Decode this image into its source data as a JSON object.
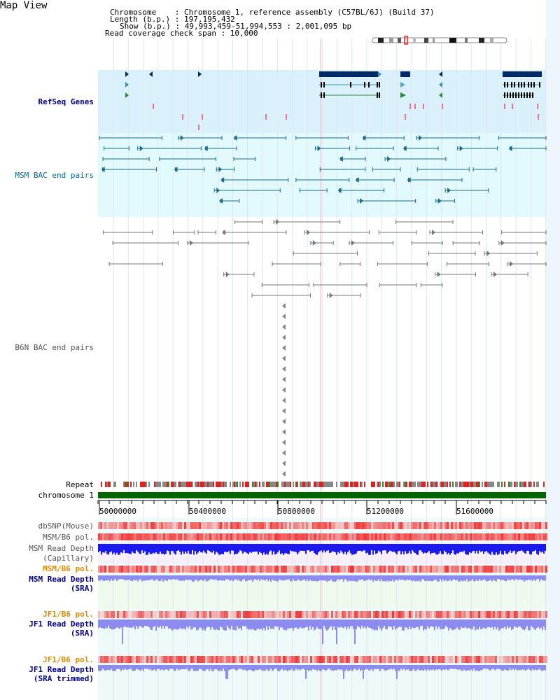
{
  "title": "Map View",
  "header": {
    "chromosome": "Chromosome    : Chromosome 1, reference assembly (C57BL/6J) (Build 37)",
    "length": "Length (b.p.) : 197,195,432",
    "show": "Show (b.p.) : 49,993,459-51,994,553 : 2,001,095 bp",
    "read_coverage": "Read coverage check span : 10,000"
  },
  "tracks": {
    "refseq": "RefSeq Genes",
    "msm_bac": "MSM BAC end pairs",
    "b6n_bac": "B6N BAC end pairs",
    "repeat": "Repeat",
    "chromosome": "chromosome 1",
    "dbsnp": "dbSNP(Mouse)",
    "msm_b6_pol_1": "MSM/B6 pol.",
    "msm_read_depth_cap_1": "MSM Read Depth",
    "msm_read_depth_cap_2": "(Capillary)",
    "msm_b6_pol_2": "MSM/B6 pol.",
    "msm_read_depth_sra_1": "MSM Read Depth",
    "msm_read_depth_sra_2": "(SRA)",
    "jf1_b6_pol_1": "JF1/B6 pol.",
    "jf1_read_depth_sra_1": "JF1 Read Depth",
    "jf1_read_depth_sra_2": "(SRA)",
    "jf1_b6_pol_2": "JF1/B6 pol.",
    "jf1_read_depth_trim_1": "JF1 Read Depth",
    "jf1_read_depth_trim_2": "(SRA trimmed)"
  },
  "axis_ticks": [
    "50000000",
    "50400000",
    "50800000",
    "51200000",
    "51600000"
  ],
  "colors": {
    "refseq_bg": "#daf1fb",
    "msm_bg": "#e3fafc",
    "b6n_bg": "#ffffff",
    "gene_navy": "#002a66",
    "msm_teal": "#1b6b8a",
    "b6n_gray": "#777777",
    "chrom_green": "#006600",
    "depth_blue": "#1a1aee",
    "depth_lavender": "#8c8cf0",
    "pol_red": "#ee3333"
  }
}
